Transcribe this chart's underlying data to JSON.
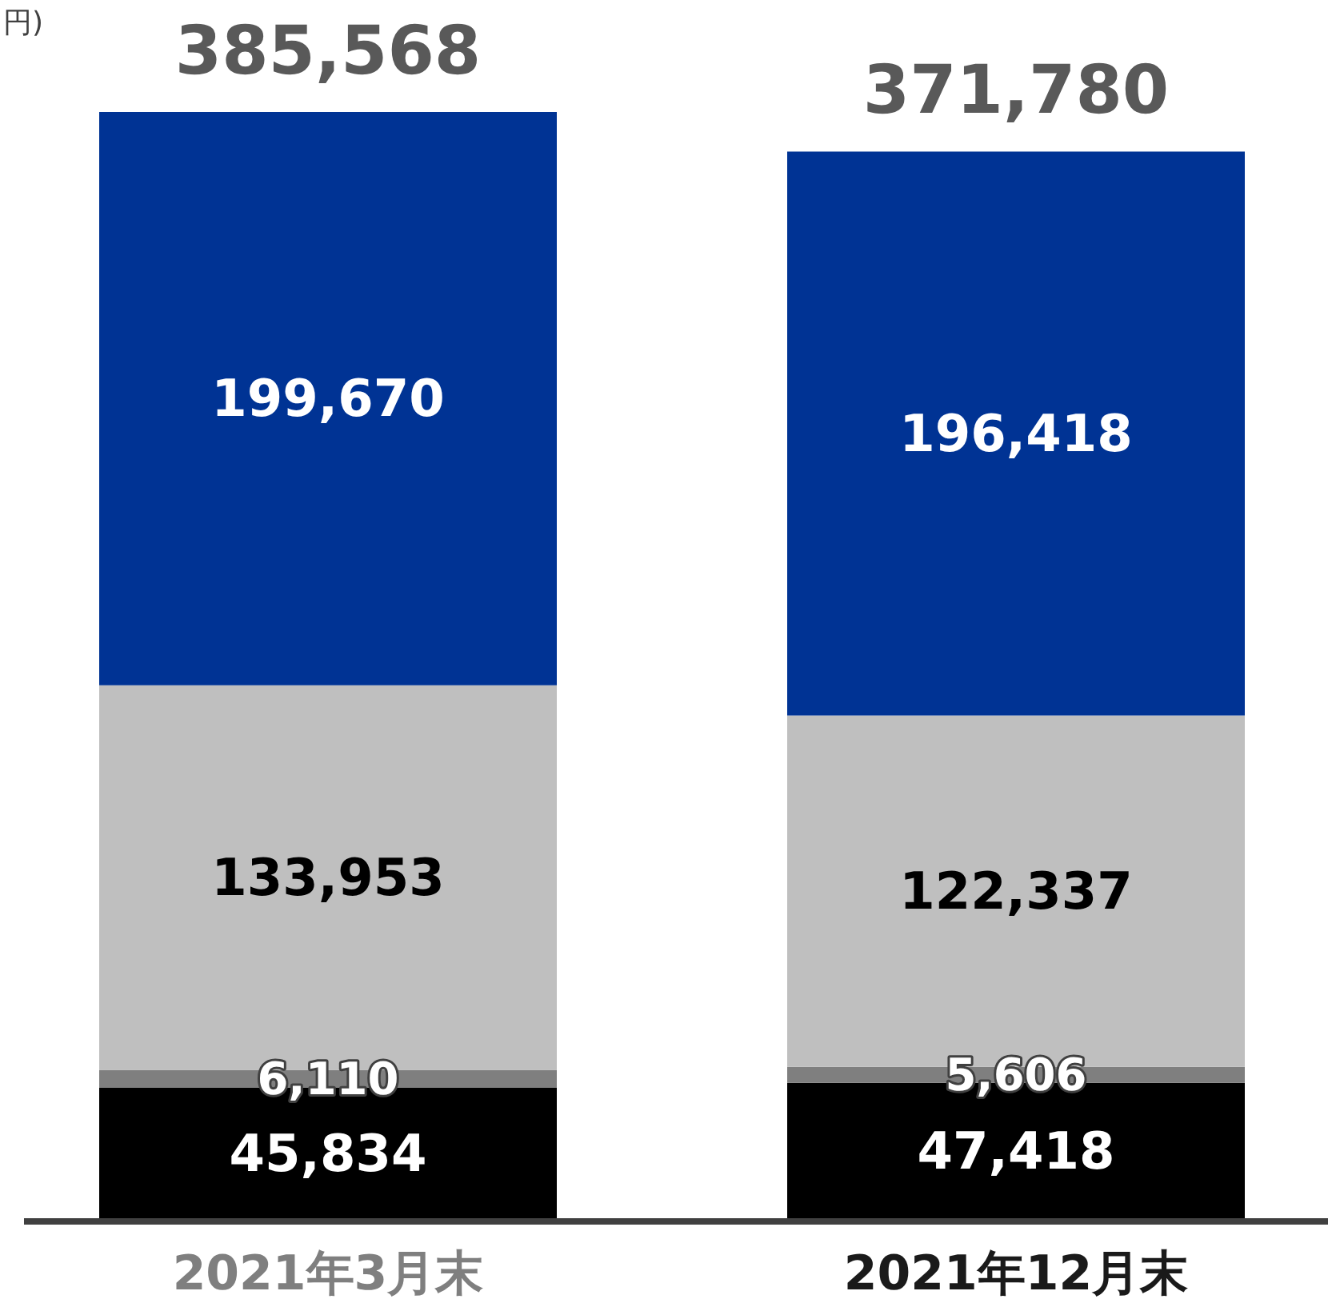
{
  "chart_data": {
    "type": "bar",
    "stacked": true,
    "categories": [
      "2021年3月末",
      "2021年12月末"
    ],
    "series": [
      {
        "color": "#000000",
        "values": [
          45834,
          47418
        ],
        "value_labels": [
          "45,834",
          "47,418"
        ]
      },
      {
        "color": "#7f7f7f",
        "values": [
          6110,
          5606
        ],
        "value_labels": [
          "6,110",
          "5,606"
        ]
      },
      {
        "color": "#bfbfbf",
        "values": [
          133953,
          122337
        ],
        "value_labels": [
          "133,953",
          "122,337"
        ]
      },
      {
        "color": "#003394",
        "values": [
          199670,
          196418
        ],
        "value_labels": [
          "199,670",
          "196,418"
        ]
      }
    ],
    "totals": [
      "385,568",
      "371,780"
    ],
    "annotations": [
      "円)"
    ]
  }
}
